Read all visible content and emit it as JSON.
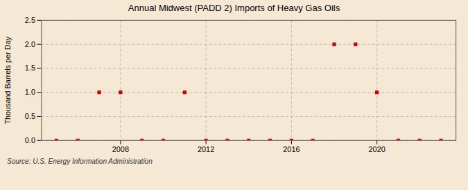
{
  "chart_data": {
    "type": "scatter",
    "title": "Annual Midwest (PADD 2) Imports of Heavy Gas Oils",
    "ylabel": "Thousand Barrels per Day",
    "caption": "Source: U.S. Energy Information Administration",
    "x": [
      2005,
      2006,
      2007,
      2008,
      2009,
      2010,
      2011,
      2012,
      2013,
      2014,
      2015,
      2016,
      2017,
      2018,
      2019,
      2020,
      2021,
      2022,
      2023
    ],
    "values": [
      0,
      0,
      1,
      1,
      0,
      0,
      1,
      0,
      0,
      0,
      0,
      0,
      0,
      2,
      2,
      1,
      0,
      0,
      0
    ],
    "color": "#cc0000",
    "marker": "square",
    "xlim": [
      2004.3,
      2023.7
    ],
    "xticks": [
      2008,
      2012,
      2016,
      2020
    ],
    "ylim": [
      0.0,
      2.5
    ],
    "yticks": [
      {
        "value": 0,
        "label": "0.0"
      },
      0.5,
      {
        "value": 1,
        "label": "1.0"
      },
      1.5,
      {
        "value": 2,
        "label": "2.0"
      },
      2.5
    ],
    "grid": true
  }
}
